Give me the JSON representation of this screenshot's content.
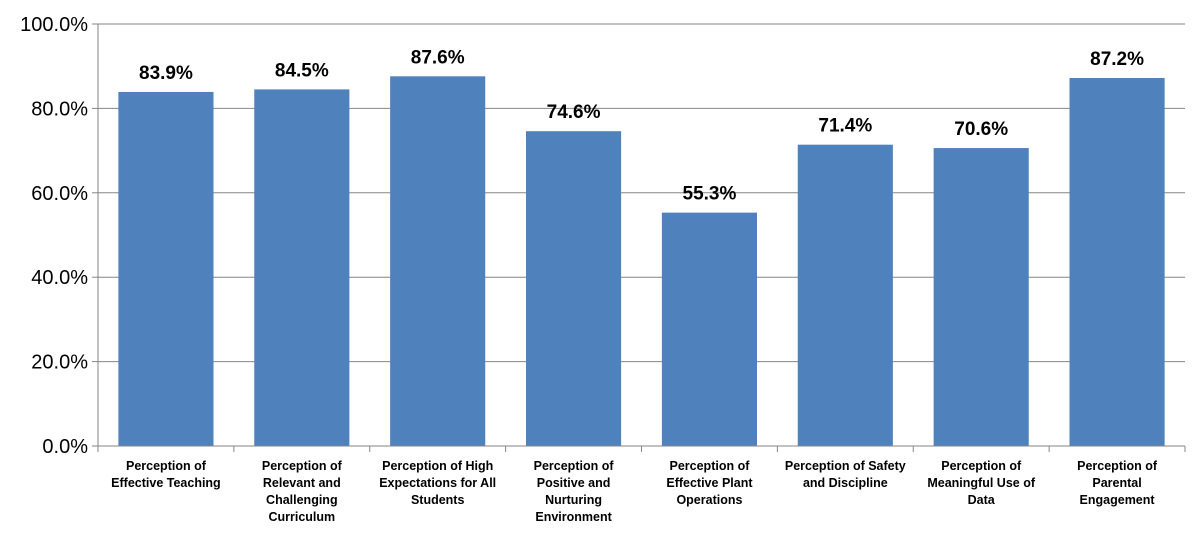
{
  "chart_data": {
    "type": "bar",
    "categories": [
      [
        "Perception of",
        "Effective Teaching"
      ],
      [
        "Perception of",
        "Relevant and",
        "Challenging",
        "Curriculum"
      ],
      [
        "Perception of High",
        "Expectations for All",
        "Students"
      ],
      [
        "Perception of",
        "Positive and",
        "Nurturing",
        "Environment"
      ],
      [
        "Perception of",
        "Effective Plant",
        "Operations"
      ],
      [
        "Perception of Safety",
        "and Discipline"
      ],
      [
        "Perception of",
        "Meaningful Use of",
        "Data"
      ],
      [
        "Perception of",
        "Parental",
        "Engagement"
      ]
    ],
    "values": [
      83.9,
      84.5,
      87.6,
      74.6,
      55.3,
      71.4,
      70.6,
      87.2
    ],
    "data_labels": [
      "83.9%",
      "84.5%",
      "87.6%",
      "74.6%",
      "55.3%",
      "71.4%",
      "70.6%",
      "87.2%"
    ],
    "y_ticks": [
      0,
      20,
      40,
      60,
      80,
      100
    ],
    "y_tick_labels": [
      "0.0%",
      "20.0%",
      "40.0%",
      "60.0%",
      "80.0%",
      "100.0%"
    ],
    "ylim": [
      0,
      100
    ],
    "title": "",
    "xlabel": "",
    "ylabel": "",
    "grid": true,
    "legend": "none",
    "colors": {
      "bar": "#4F81BD",
      "grid": "#868686",
      "axis": "#868686",
      "text": "#000000"
    }
  }
}
